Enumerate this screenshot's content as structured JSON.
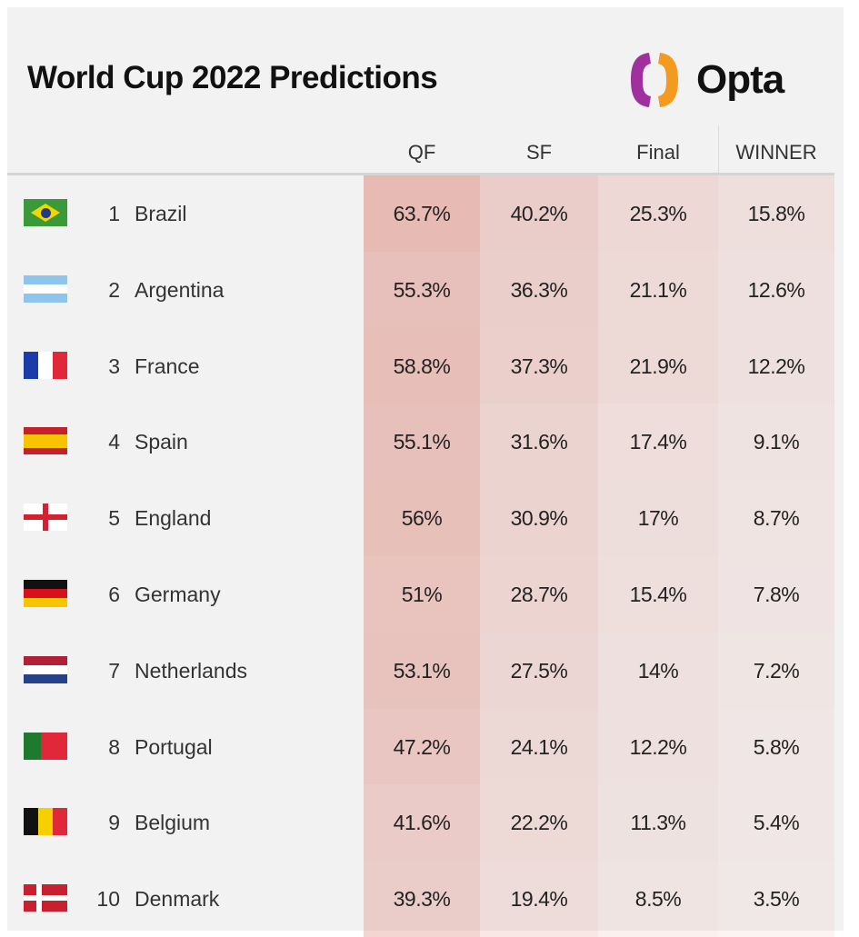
{
  "title": "World Cup 2022 Predictions",
  "logo": {
    "text": "Opta",
    "colors": [
      "#9b2fae",
      "#f39a1f"
    ]
  },
  "columns": {
    "qf": "QF",
    "sf": "SF",
    "final": "Final",
    "winner": "WINNER"
  },
  "heat_color": "#d9786a",
  "teams": [
    {
      "rank": "1",
      "name": "Brazil",
      "flag": "brazil",
      "qf": "63.7%",
      "sf": "40.2%",
      "final": "25.3%",
      "winner": "15.8%"
    },
    {
      "rank": "2",
      "name": "Argentina",
      "flag": "argentina",
      "qf": "55.3%",
      "sf": "36.3%",
      "final": "21.1%",
      "winner": "12.6%"
    },
    {
      "rank": "3",
      "name": "France",
      "flag": "france",
      "qf": "58.8%",
      "sf": "37.3%",
      "final": "21.9%",
      "winner": "12.2%"
    },
    {
      "rank": "4",
      "name": "Spain",
      "flag": "spain",
      "qf": "55.1%",
      "sf": "31.6%",
      "final": "17.4%",
      "winner": "9.1%"
    },
    {
      "rank": "5",
      "name": "England",
      "flag": "england",
      "qf": "56%",
      "sf": "30.9%",
      "final": "17%",
      "winner": "8.7%"
    },
    {
      "rank": "6",
      "name": "Germany",
      "flag": "germany",
      "qf": "51%",
      "sf": "28.7%",
      "final": "15.4%",
      "winner": "7.8%"
    },
    {
      "rank": "7",
      "name": "Netherlands",
      "flag": "netherlands",
      "qf": "53.1%",
      "sf": "27.5%",
      "final": "14%",
      "winner": "7.2%"
    },
    {
      "rank": "8",
      "name": "Portugal",
      "flag": "portugal",
      "qf": "47.2%",
      "sf": "24.1%",
      "final": "12.2%",
      "winner": "5.8%"
    },
    {
      "rank": "9",
      "name": "Belgium",
      "flag": "belgium",
      "qf": "41.6%",
      "sf": "22.2%",
      "final": "11.3%",
      "winner": "5.4%"
    },
    {
      "rank": "10",
      "name": "Denmark",
      "flag": "denmark",
      "qf": "39.3%",
      "sf": "19.4%",
      "final": "8.5%",
      "winner": "3.5%"
    }
  ]
}
